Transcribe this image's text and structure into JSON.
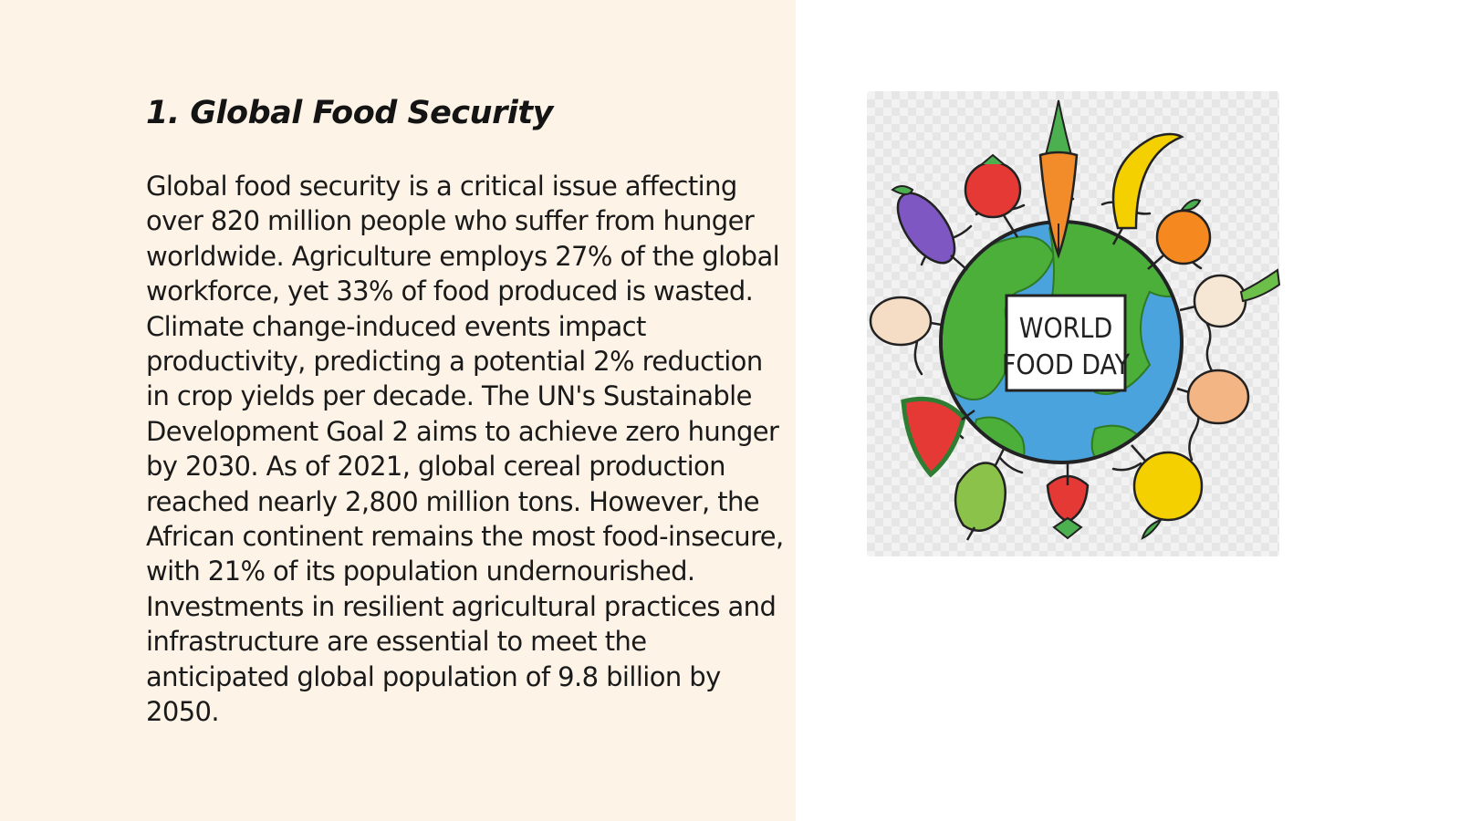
{
  "slide": {
    "title": "1. Global Food Security",
    "body": "Global food security is a critical issue affecting over 820 million people who suffer from hunger worldwide. Agriculture employs 27% of the global workforce, yet 33% of food produced is wasted. Climate change-induced events impact productivity, predicting a potential 2% reduction in crop yields per decade. The UN's Sustainable Development Goal 2 aims to achieve zero hunger by 2030. As of 2021, global cereal production reached nearly 2,800 million tons. However, the African continent remains the most food-insecure, with 21% of its population undernourished. Investments in resilient agricultural practices and infrastructure are essential to meet the anticipated global population of 9.8 billion by 2050."
  },
  "illustration": {
    "sign_line_1": "WORLD",
    "sign_line_2": "FOOD DAY",
    "colors": {
      "ocean": "#4aa3dc",
      "land": "#4caf3a",
      "panel_background": "#fdf3e6"
    }
  }
}
